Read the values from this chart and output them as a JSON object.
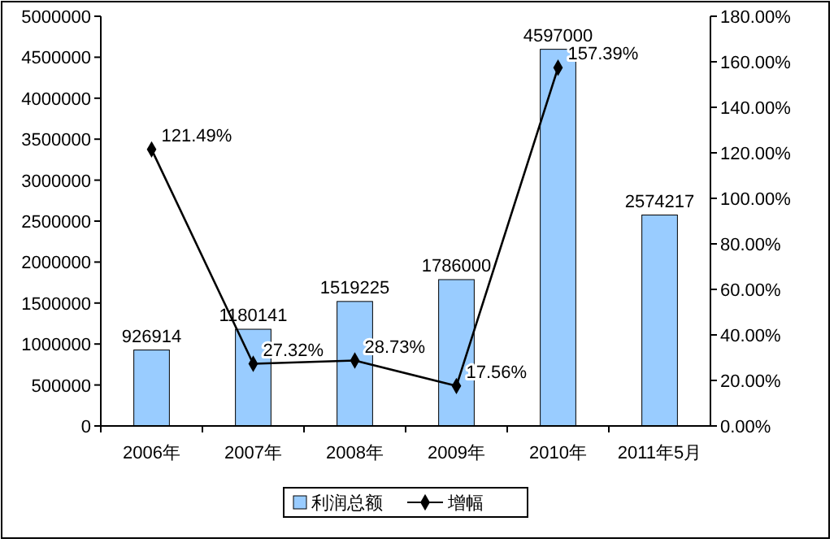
{
  "chart_data": {
    "type": "bar",
    "categories": [
      "2006年",
      "2007年",
      "2008年",
      "2009年",
      "2010年",
      "2011年5月"
    ],
    "series": [
      {
        "name": "利润总额",
        "color": "#99ccff",
        "values": [
          926914,
          1180141,
          1519225,
          1786000,
          4597000,
          2574217
        ],
        "value_labels": [
          "926914",
          "1180141",
          "1519225",
          "1786000",
          "4597000",
          "2574217"
        ]
      },
      {
        "name": "增幅",
        "type": "line",
        "axis": "y2",
        "color": "#000000",
        "values": [
          121.49,
          27.32,
          28.73,
          17.56,
          157.39,
          null
        ],
        "value_labels": [
          "121.49%",
          "27.32%",
          "28.73%",
          "17.56%",
          "157.39%",
          null
        ]
      }
    ],
    "ylim": [
      0,
      5000000
    ],
    "yticks": [
      0,
      500000,
      1000000,
      1500000,
      2000000,
      2500000,
      3000000,
      3500000,
      4000000,
      4500000,
      5000000
    ],
    "y2lim": [
      0,
      180
    ],
    "y2ticks": [
      {
        "value": 0,
        "label": "0.00%"
      },
      {
        "value": 20,
        "label": "20.00%"
      },
      {
        "value": 40,
        "label": "40.00%"
      },
      {
        "value": 60,
        "label": "60.00%"
      },
      {
        "value": 80,
        "label": "80.00%"
      },
      {
        "value": 100,
        "label": "100.00%"
      },
      {
        "value": 120,
        "label": "120.00%"
      },
      {
        "value": 140,
        "label": "140.00%"
      },
      {
        "value": 160,
        "label": "160.00%"
      },
      {
        "value": 180,
        "label": "180.00%"
      }
    ],
    "legend": "bottom",
    "marker": "diamond",
    "line_style": "solid",
    "grid": false
  }
}
